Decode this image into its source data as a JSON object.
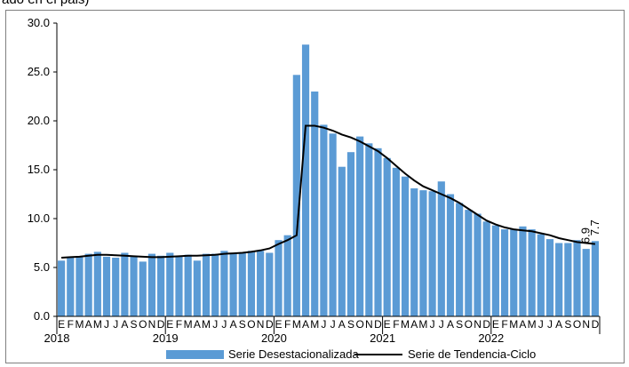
{
  "header": {
    "text": "ado en el pais)"
  },
  "chart_data": {
    "type": "bar",
    "colors": {
      "bars": "#5b9bd5",
      "trend": "#000000"
    },
    "ylim": [
      0,
      30
    ],
    "yticks": [
      "0.0",
      "5.0",
      "10.0",
      "15.0",
      "20.0",
      "25.0",
      "30.0"
    ],
    "month_labels": [
      "E",
      "F",
      "M",
      "A",
      "M",
      "J",
      "J",
      "A",
      "S",
      "O",
      "N",
      "D"
    ],
    "years": [
      "2018",
      "2019",
      "2020",
      "2021",
      "2022"
    ],
    "series": [
      {
        "name": "Serie Desestacionalizada",
        "kind": "bar",
        "values": [
          5.7,
          6.0,
          6.1,
          6.4,
          6.6,
          6.1,
          6.0,
          6.5,
          6.1,
          5.6,
          6.4,
          6.2,
          6.5,
          6.1,
          6.3,
          5.7,
          6.4,
          6.4,
          6.7,
          6.5,
          6.5,
          6.7,
          6.7,
          6.5,
          7.8,
          8.3,
          24.7,
          27.8,
          23.0,
          19.6,
          18.7,
          15.3,
          16.8,
          18.4,
          17.7,
          17.2,
          16.2,
          15.2,
          14.3,
          13.1,
          12.9,
          12.8,
          13.8,
          12.5,
          11.6,
          10.9,
          10.5,
          9.7,
          9.3,
          8.9,
          8.9,
          9.2,
          8.9,
          8.4,
          7.9,
          7.5,
          7.5,
          7.8,
          6.9,
          7.7
        ]
      },
      {
        "name": "Serie de Tendencia-Ciclo",
        "kind": "line",
        "values": [
          6.0,
          6.05,
          6.1,
          6.2,
          6.3,
          6.3,
          6.25,
          6.2,
          6.15,
          6.1,
          6.05,
          6.05,
          6.1,
          6.15,
          6.2,
          6.2,
          6.25,
          6.3,
          6.4,
          6.45,
          6.5,
          6.6,
          6.75,
          6.95,
          7.4,
          7.8,
          8.3,
          19.5,
          19.5,
          19.3,
          19.0,
          18.6,
          18.3,
          17.9,
          17.4,
          16.9,
          16.2,
          15.4,
          14.6,
          13.9,
          13.3,
          12.9,
          12.5,
          12.1,
          11.6,
          11.0,
          10.4,
          9.8,
          9.4,
          9.1,
          8.9,
          8.8,
          8.7,
          8.5,
          8.3,
          8.0,
          7.8,
          7.6,
          7.5,
          7.4
        ]
      }
    ],
    "annotations": [
      "6.9",
      "7.7"
    ],
    "legend_position": "bottom"
  }
}
